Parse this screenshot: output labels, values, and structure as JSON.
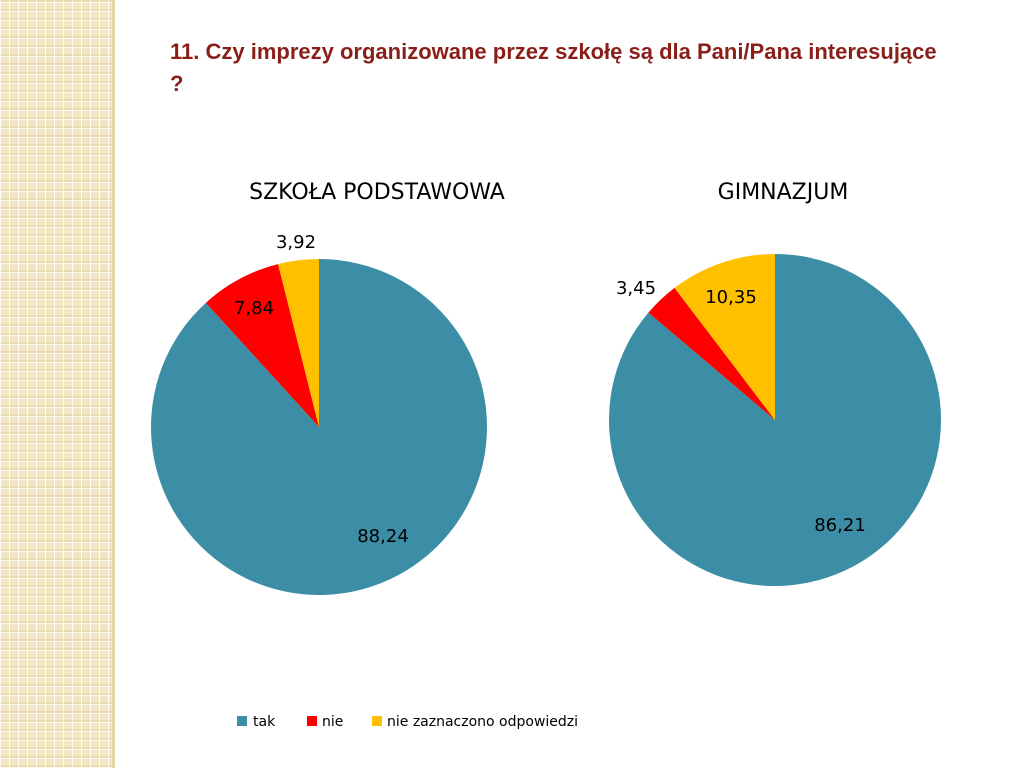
{
  "slide": {
    "title": "11. Czy imprezy organizowane przez szkołę są dla Pani/Pana interesujące ?"
  },
  "chart_data": [
    {
      "type": "pie",
      "title": "SZKOŁA PODSTAWOWA",
      "categories": [
        "tak",
        "nie",
        "nie zaznaczono odpowiedzi"
      ],
      "values": [
        88.24,
        7.84,
        3.92
      ],
      "value_labels": [
        "88,24",
        "7,84",
        "3,92"
      ],
      "colors": [
        "#3b8ea5",
        "#ff0000",
        "#ffc000"
      ],
      "start_angle": "12 o'clock",
      "direction": "clockwise"
    },
    {
      "type": "pie",
      "title": "GIMNAZJUM",
      "categories": [
        "tak",
        "nie",
        "nie zaznaczono odpowiedzi"
      ],
      "values": [
        86.21,
        3.45,
        10.35
      ],
      "value_labels": [
        "86,21",
        "3,45",
        "10,35"
      ],
      "colors": [
        "#3b8ea5",
        "#ff0000",
        "#ffc000"
      ],
      "start_angle": "12 o'clock",
      "direction": "clockwise"
    }
  ],
  "legend": {
    "placement": "bottom",
    "items": [
      {
        "label": "tak",
        "color": "#3b8ea5"
      },
      {
        "label": "nie",
        "color": "#ff0000"
      },
      {
        "label": "nie zaznaczono odpowiedzi",
        "color": "#ffc000"
      }
    ]
  }
}
